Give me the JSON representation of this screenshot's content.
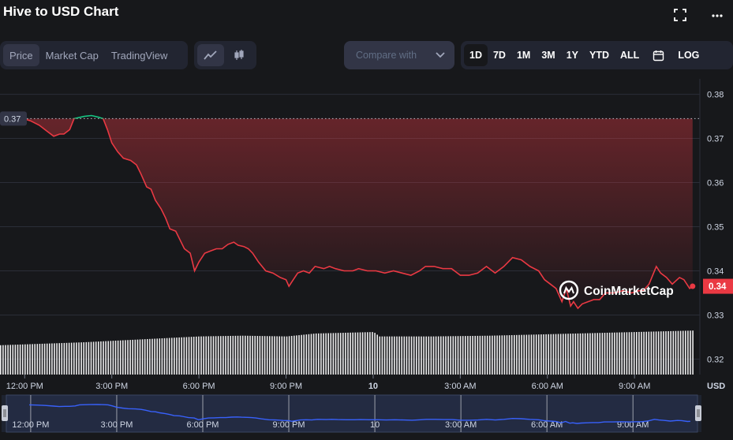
{
  "header": {
    "title": "Hive to USD Chart"
  },
  "toolbar": {
    "view_tabs": [
      "Price",
      "Market Cap",
      "TradingView"
    ],
    "active_view": "Price",
    "chart_styles": [
      "line-chart-icon",
      "candlestick-icon"
    ],
    "compare_placeholder": "Compare with",
    "timeframes": [
      "1D",
      "7D",
      "1M",
      "3M",
      "1Y",
      "YTD",
      "ALL"
    ],
    "active_timeframe": "1D",
    "log_label": "LOG"
  },
  "colors": {
    "background": "#17181b",
    "down_line": "#ea3943",
    "up_line": "#16c784",
    "navigator_line": "#3861fb",
    "volume": "#ffffff"
  },
  "watermark": "CoinMarketCap",
  "chart_data": {
    "type": "area",
    "currency_label": "USD",
    "reference_price_label": "0.37",
    "reference_price": 0.3745,
    "current_price_label": "0.34",
    "current_price": 0.3365,
    "ylim": [
      0.3165,
      0.3835
    ],
    "y_ticks": [
      "0.38",
      "0.37",
      "0.36",
      "0.35",
      "0.34",
      "0.33",
      "0.32"
    ],
    "y_tick_values": [
      0.38,
      0.37,
      0.36,
      0.35,
      0.34,
      0.33,
      0.32
    ],
    "x_tick_labels": [
      "12:00 PM",
      "3:00 PM",
      "6:00 PM",
      "9:00 PM",
      "10",
      "3:00 AM",
      "6:00 AM",
      "9:00 AM"
    ],
    "x_tick_hours": [
      0,
      3,
      6,
      9,
      12,
      15,
      18,
      21
    ],
    "x_hours_range": [
      -0.85,
      23.25
    ],
    "price_series": {
      "hours": [
        -0.05,
        0.2,
        0.5,
        0.8,
        1.0,
        1.2,
        1.35,
        1.55,
        1.7,
        2.05,
        2.3,
        2.55,
        2.7,
        2.85,
        3.0,
        3.2,
        3.4,
        3.65,
        3.85,
        4.0,
        4.2,
        4.35,
        4.5,
        4.7,
        4.85,
        5.0,
        5.2,
        5.35,
        5.5,
        5.7,
        5.85,
        6.0,
        6.2,
        6.4,
        6.6,
        6.8,
        7.0,
        7.2,
        7.35,
        7.55,
        7.7,
        7.85,
        8.05,
        8.3,
        8.55,
        8.8,
        9.0,
        9.1,
        9.25,
        9.4,
        9.6,
        9.8,
        10.0,
        10.3,
        10.5,
        10.7,
        11.0,
        11.3,
        11.5,
        11.8,
        12.1,
        12.4,
        12.7,
        13.0,
        13.3,
        13.6,
        13.8,
        14.1,
        14.4,
        14.7,
        15.0,
        15.3,
        15.6,
        15.9,
        16.2,
        16.5,
        16.8,
        17.1,
        17.4,
        17.7,
        17.9,
        18.1,
        18.3,
        18.5,
        18.65,
        18.8,
        18.9,
        19.05,
        19.2,
        19.4,
        19.6,
        19.8,
        20.0,
        20.3,
        20.6,
        20.9,
        21.15,
        21.3,
        21.5,
        21.75,
        21.9,
        22.1,
        22.3,
        22.55,
        22.7,
        22.9,
        23.0
      ],
      "prices": [
        0.3745,
        0.374,
        0.373,
        0.3715,
        0.3705,
        0.371,
        0.371,
        0.372,
        0.3745,
        0.375,
        0.3752,
        0.3748,
        0.3745,
        0.372,
        0.369,
        0.367,
        0.3655,
        0.365,
        0.364,
        0.362,
        0.359,
        0.3585,
        0.356,
        0.354,
        0.352,
        0.3495,
        0.349,
        0.347,
        0.345,
        0.344,
        0.34,
        0.342,
        0.344,
        0.3445,
        0.345,
        0.345,
        0.346,
        0.3465,
        0.3458,
        0.3455,
        0.345,
        0.344,
        0.342,
        0.34,
        0.3395,
        0.3385,
        0.338,
        0.3365,
        0.338,
        0.3395,
        0.34,
        0.3395,
        0.341,
        0.3405,
        0.341,
        0.3405,
        0.34,
        0.34,
        0.3405,
        0.34,
        0.34,
        0.3395,
        0.34,
        0.3395,
        0.339,
        0.34,
        0.341,
        0.341,
        0.3405,
        0.3405,
        0.339,
        0.339,
        0.3395,
        0.341,
        0.3395,
        0.341,
        0.343,
        0.3425,
        0.341,
        0.34,
        0.338,
        0.337,
        0.336,
        0.333,
        0.336,
        0.332,
        0.333,
        0.3315,
        0.3325,
        0.333,
        0.3335,
        0.3335,
        0.335,
        0.335,
        0.3355,
        0.335,
        0.3355,
        0.3355,
        0.337,
        0.341,
        0.3395,
        0.3385,
        0.337,
        0.3385,
        0.338,
        0.336,
        0.3365
      ]
    },
    "volume_series": {
      "start_hour": -0.85,
      "end_hour": 23.0,
      "level_points_hours": [
        -0.85,
        2.0,
        4.0,
        6.0,
        7.5,
        9.0,
        10.0,
        12.0,
        12.2,
        14.0,
        16.0,
        18.0,
        20.0,
        22.0,
        23.0
      ],
      "relative_level": [
        0.4,
        0.44,
        0.48,
        0.52,
        0.53,
        0.52,
        0.56,
        0.58,
        0.52,
        0.52,
        0.53,
        0.55,
        0.57,
        0.59,
        0.6
      ]
    },
    "navigator": {
      "x_tick_labels": [
        "12:00 PM",
        "3:00 PM",
        "6:00 PM",
        "9:00 PM",
        "10",
        "3:00 AM",
        "6:00 AM",
        "9:00 AM"
      ]
    },
    "grid": true,
    "legend": "none"
  }
}
